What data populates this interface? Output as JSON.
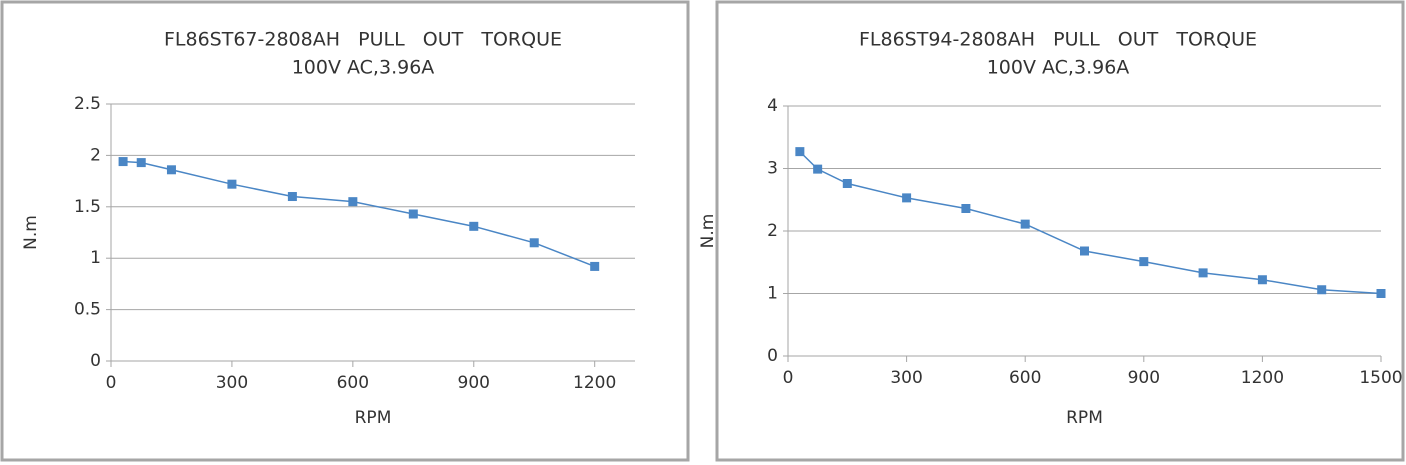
{
  "chart_data": [
    {
      "type": "line",
      "title": "FL86ST67-2808AH   PULL   OUT   TORQUE",
      "subtitle": "100V AC,3.96A",
      "xlabel": "RPM",
      "ylabel": "N.m",
      "x": [
        30,
        75,
        150,
        300,
        450,
        600,
        750,
        900,
        1050,
        1200
      ],
      "series": [
        {
          "color": "#4a86c5",
          "values": [
            1.94,
            1.93,
            1.86,
            1.72,
            1.6,
            1.55,
            1.43,
            1.31,
            1.15,
            0.92
          ]
        }
      ],
      "xlim": [
        0,
        1300
      ],
      "xticks": [
        0,
        300,
        600,
        900,
        1200
      ],
      "ylim": [
        0,
        2.5
      ],
      "yticks": [
        0,
        0.5,
        1,
        1.5,
        2,
        2.5
      ],
      "grid": true
    },
    {
      "type": "line",
      "title": "FL86ST94-2808AH   PULL   OUT   TORQUE",
      "subtitle": "100V AC,3.96A",
      "xlabel": "RPM",
      "ylabel": "N.m",
      "x": [
        30,
        75,
        150,
        300,
        450,
        600,
        750,
        900,
        1050,
        1200,
        1350,
        1500
      ],
      "series": [
        {
          "color": "#4a86c5",
          "values": [
            3.27,
            2.99,
            2.76,
            2.53,
            2.36,
            2.11,
            1.68,
            1.51,
            1.33,
            1.22,
            1.06,
            1.0
          ]
        }
      ],
      "xlim": [
        0,
        1500
      ],
      "xticks": [
        0,
        300,
        600,
        900,
        1200,
        1500
      ],
      "ylim": [
        0,
        4
      ],
      "yticks": [
        0,
        1,
        2,
        3,
        4
      ],
      "grid": true
    }
  ]
}
